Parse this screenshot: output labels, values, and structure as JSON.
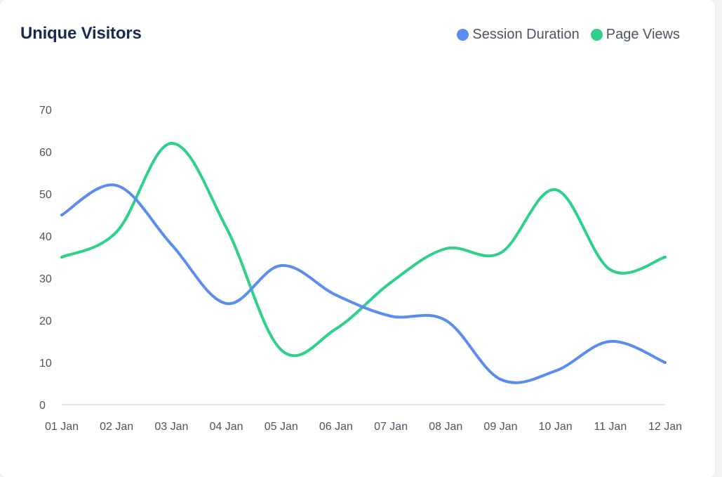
{
  "header": {
    "title": "Unique Visitors"
  },
  "colors": {
    "session": "#5b8def",
    "pageviews": "#2ed08a",
    "axis": "#d9dde3"
  },
  "chart_data": {
    "type": "line",
    "title": "Unique Visitors",
    "curve": "smooth",
    "categories": [
      "01 Jan",
      "02 Jan",
      "03 Jan",
      "04 Jan",
      "05 Jan",
      "06 Jan",
      "07 Jan",
      "08 Jan",
      "09 Jan",
      "10 Jan",
      "11 Jan",
      "12 Jan"
    ],
    "series": [
      {
        "name": "Session Duration",
        "values": [
          45,
          52,
          38,
          24,
          33,
          26,
          21,
          20,
          6,
          8,
          15,
          10
        ],
        "color": "#5b8def"
      },
      {
        "name": "Page Views",
        "values": [
          35,
          41,
          62,
          42,
          13,
          18,
          29,
          37,
          36,
          51,
          32,
          35
        ],
        "color": "#2ed08a"
      }
    ],
    "ylim": [
      0,
      70
    ],
    "yticks": [
      0,
      10,
      20,
      30,
      40,
      50,
      60,
      70
    ],
    "grid": false,
    "legend": "top-right"
  }
}
